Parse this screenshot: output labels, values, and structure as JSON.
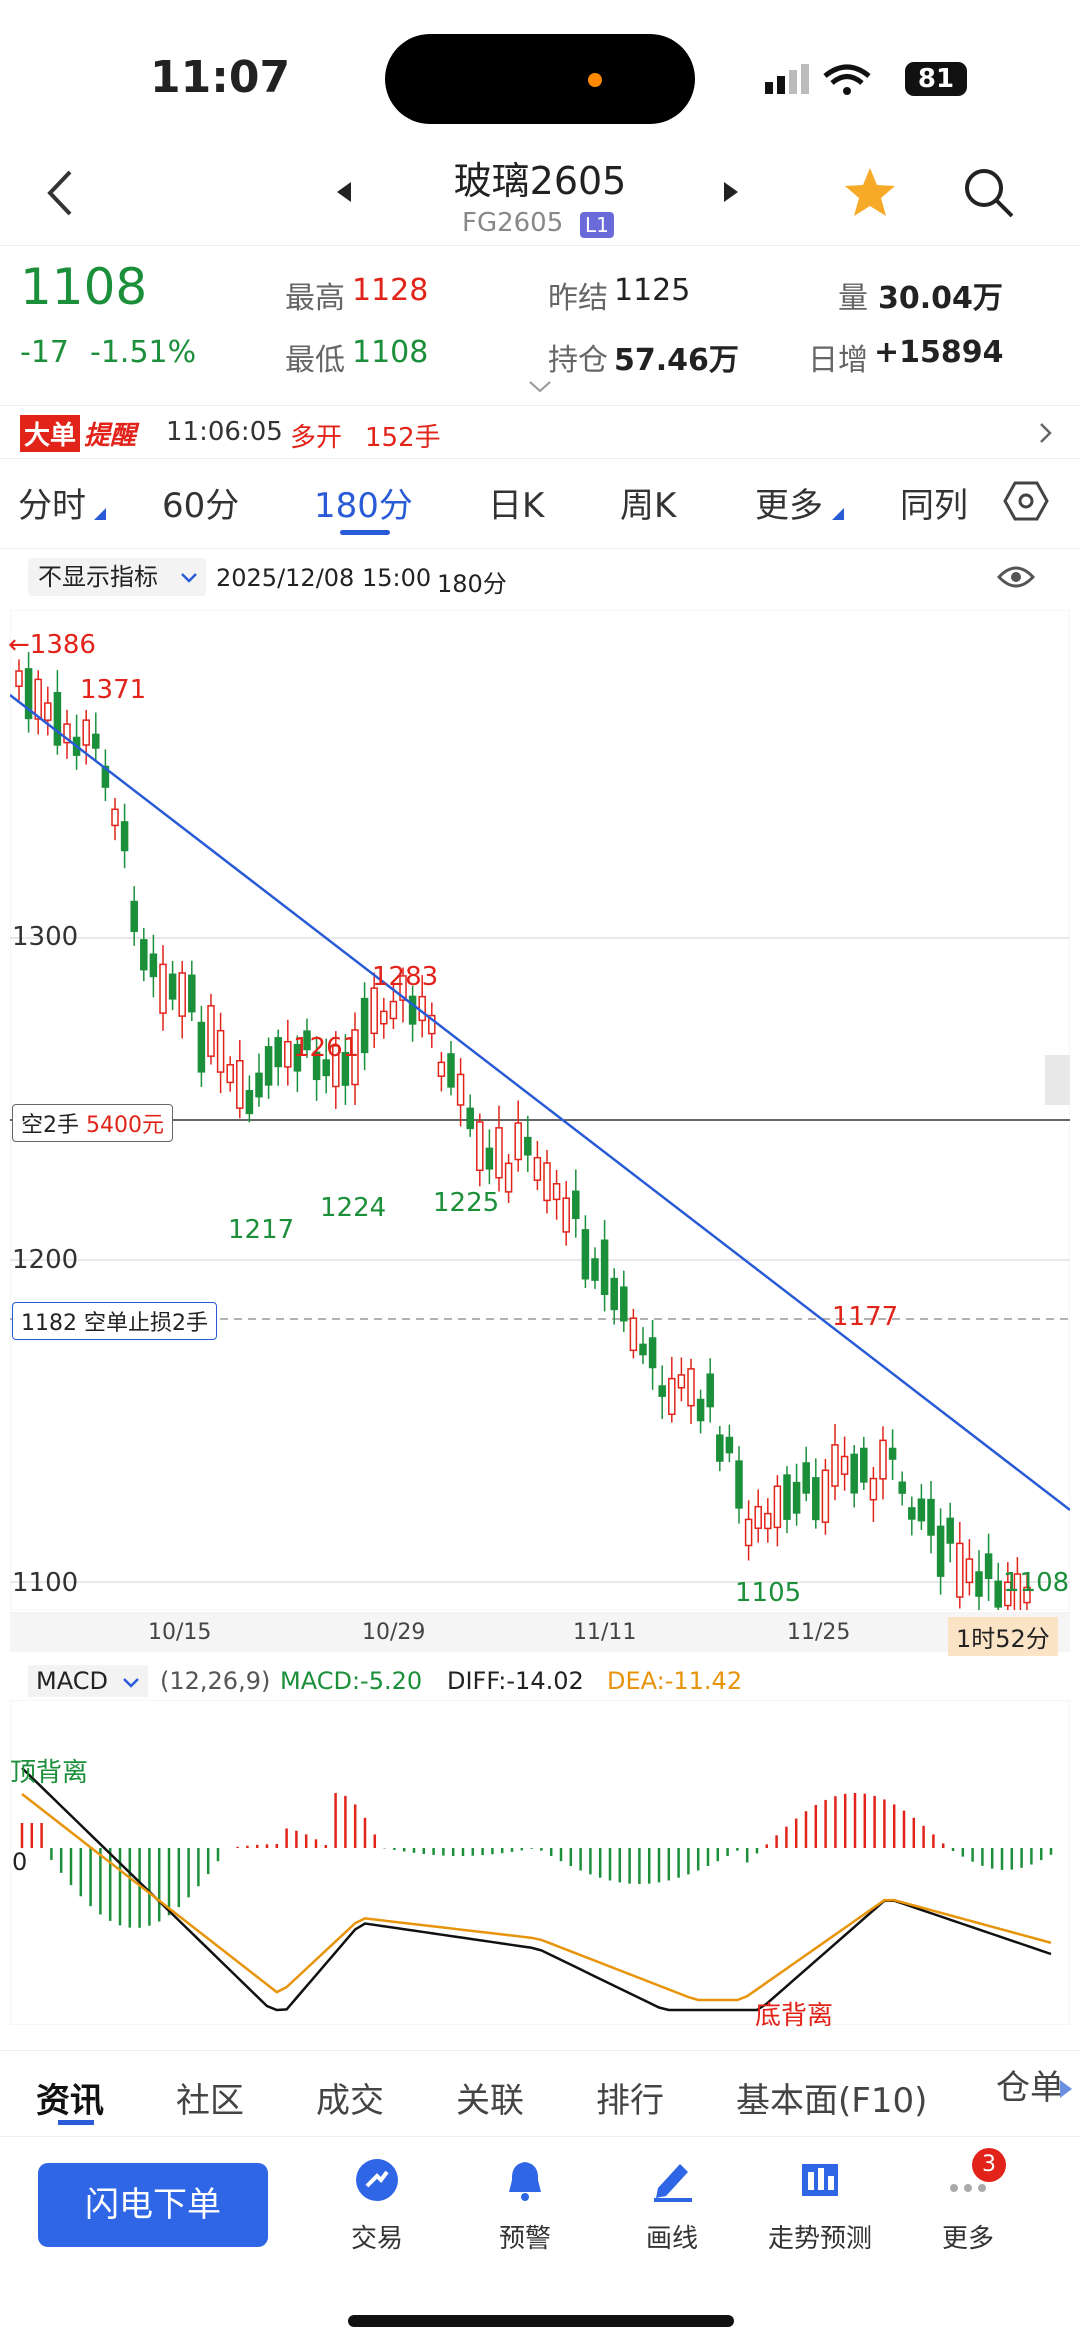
{
  "status_bar": {
    "time": "11:07",
    "battery": "81"
  },
  "header": {
    "title": "玻璃2605",
    "code": "FG2605",
    "code_tag": "L1"
  },
  "quote": {
    "price": "1108",
    "change": "-17",
    "change_pct": "-1.51%",
    "high_label": "最高",
    "high": "1128",
    "low_label": "最低",
    "low": "1108",
    "prev_settle_label": "昨结",
    "prev_settle": "1125",
    "open_interest_label": "持仓",
    "open_interest": "57.46万",
    "volume_label": "量",
    "volume": "30.04万",
    "daily_oi_label": "日增",
    "daily_oi": "+15894"
  },
  "alert": {
    "tag1": "大单",
    "tag2": "提醒",
    "time": "11:06:05",
    "type": "多开",
    "qty": "152手"
  },
  "period_tabs": [
    "分时",
    "60分",
    "180分",
    "日K",
    "周K",
    "更多",
    "同列"
  ],
  "chart_toolbar": {
    "indicator": "不显示指标",
    "datetime": "2025/12/08 15:00",
    "period": "180分"
  },
  "chart_data": {
    "type": "candlestick",
    "y_ticks": [
      "1300",
      "1200",
      "1100"
    ],
    "x_ticks": [
      "10/15",
      "10/29",
      "11/11",
      "11/25"
    ],
    "price_labels": {
      "max_label": "←1386",
      "p1371": "1371",
      "p1283": "1283",
      "p1261": "1261",
      "p1224": "1224",
      "p1217": "1217",
      "p1225": "1225",
      "p1177": "1177",
      "p1105": "1105",
      "last": "1108"
    },
    "position_label": "空2手",
    "position_pnl": "5400元",
    "stop_label": "1182 空单止损2手",
    "countdown": "1时52分",
    "colors": {
      "up": "#e2231a",
      "down": "#1b8f3a",
      "trend": "#2a5bd7"
    }
  },
  "macd": {
    "selector": "MACD",
    "params": "(12,26,9)",
    "macd": "MACD:-5.20",
    "diff": "DIFF:-14.02",
    "dea": "DEA:-11.42",
    "zero": "0",
    "top_div": "顶背离",
    "bottom_div": "底背离"
  },
  "bottom_tabs": [
    "资讯",
    "社区",
    "成交",
    "关联",
    "排行",
    "基本面(F10)",
    "仓单"
  ],
  "bottom_nav": {
    "flash": "闪电下单",
    "items": [
      "交易",
      "预警",
      "画线",
      "走势预测",
      "更多"
    ],
    "badge": "3"
  }
}
